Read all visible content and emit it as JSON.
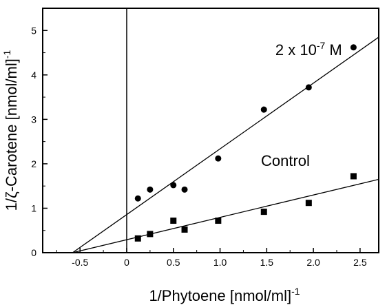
{
  "chart_data": {
    "type": "scatter",
    "xlabel": "1/Phytoene [nmol/ml]",
    "xlabel_sup": "-1",
    "ylabel": "1/ζ-Carotene [nmol/ml]",
    "ylabel_sup": "-1",
    "xlim": [
      -0.9,
      2.7
    ],
    "ylim": [
      0,
      5.5
    ],
    "xticks": [
      -0.5,
      0,
      0.5,
      1,
      1.5,
      2,
      2.5
    ],
    "xtick_labels": [
      "-0.5",
      "0",
      "0.5",
      "1.0",
      "1.5",
      "2.0",
      "2.5"
    ],
    "yticks": [
      0,
      1,
      2,
      3,
      4,
      5
    ],
    "ytick_labels": [
      "0",
      "1",
      "2",
      "3",
      "4",
      "5"
    ],
    "grid": false,
    "zero_line_x": 0,
    "series": [
      {
        "name": "2 x 10-7 M",
        "marker": "circle",
        "points": [
          [
            0.12,
            1.22
          ],
          [
            0.25,
            1.42
          ],
          [
            0.5,
            1.52
          ],
          [
            0.62,
            1.42
          ],
          [
            0.98,
            2.12
          ],
          [
            1.47,
            3.22
          ],
          [
            1.95,
            3.72
          ],
          [
            2.43,
            4.62
          ]
        ],
        "fit": [
          [
            -0.58,
            0.0
          ],
          [
            2.7,
            4.85
          ]
        ]
      },
      {
        "name": "Control",
        "marker": "square",
        "points": [
          [
            0.12,
            0.32
          ],
          [
            0.25,
            0.42
          ],
          [
            0.5,
            0.72
          ],
          [
            0.62,
            0.52
          ],
          [
            0.98,
            0.72
          ],
          [
            1.47,
            0.92
          ],
          [
            1.95,
            1.12
          ],
          [
            2.43,
            1.72
          ]
        ],
        "fit": [
          [
            -0.58,
            0.0
          ],
          [
            2.7,
            1.65
          ]
        ]
      }
    ],
    "annotations": [
      {
        "base": "2 x 10",
        "sup": "-7",
        "tail": " M",
        "x": 1.95,
        "y": 4.45
      },
      {
        "base": "Control",
        "x": 1.7,
        "y": 1.95
      }
    ]
  }
}
